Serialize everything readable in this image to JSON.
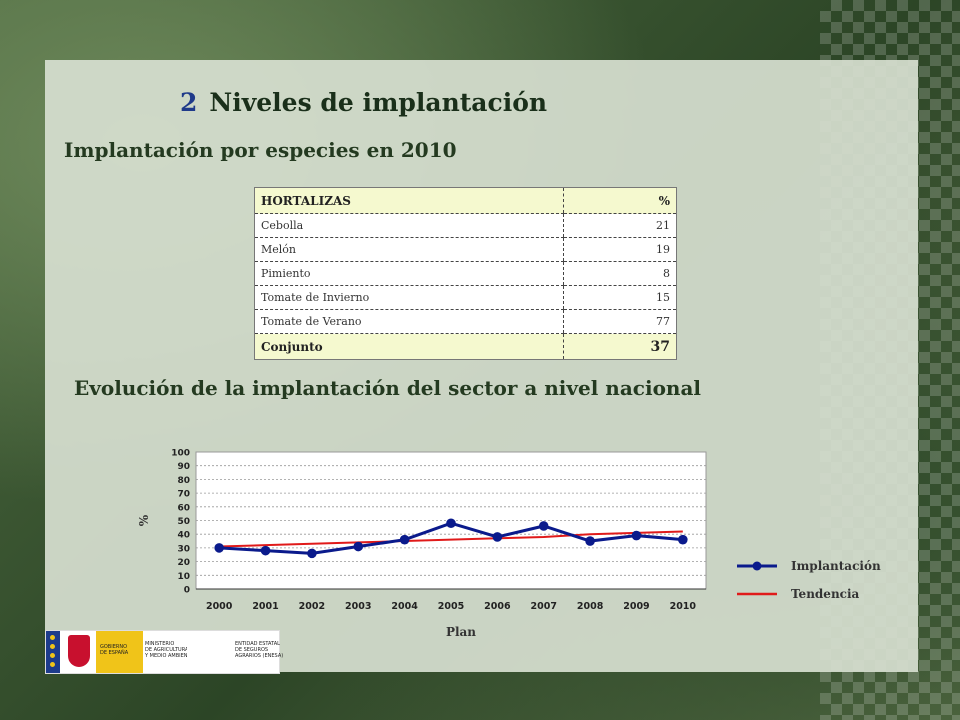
{
  "heading": {
    "number": "2",
    "title": "Niveles de implantación"
  },
  "subtitle": "Implantación por especies en 2010",
  "table": {
    "header": [
      "HORTALIZAS",
      "%"
    ],
    "rows": [
      {
        "label": "Cebolla",
        "value": "21"
      },
      {
        "label": "Melón",
        "value": "19"
      },
      {
        "label": "Pimiento",
        "value": "8"
      },
      {
        "label": "Tomate de Invierno",
        "value": "15"
      },
      {
        "label": "Tomate de Verano",
        "value": "77"
      }
    ],
    "total": {
      "label": "Conjunto",
      "value": "37"
    }
  },
  "chart_title": "Evolución de la implantación del sector a nivel nacional",
  "chart_data": {
    "type": "line",
    "x": [
      "2000",
      "2001",
      "2002",
      "2003",
      "2004",
      "2005",
      "2006",
      "2007",
      "2008",
      "2009",
      "2010"
    ],
    "series": [
      {
        "name": "Implantación",
        "values": [
          30,
          28,
          26,
          31,
          36,
          48,
          38,
          46,
          35,
          39,
          36
        ],
        "color": "#0a1a8c",
        "marker": "circle"
      },
      {
        "name": "Tendencia",
        "values": [
          31,
          32,
          33,
          34,
          35,
          36,
          37,
          38,
          40,
          41,
          42
        ],
        "color": "#e01a1a",
        "marker": "none"
      }
    ],
    "xlabel": "Plan",
    "ylabel": "%",
    "ylim": [
      0,
      100
    ],
    "yticks": [
      0,
      10,
      20,
      30,
      40,
      50,
      60,
      70,
      80,
      90,
      100
    ],
    "grid": true,
    "legend_position": "right"
  },
  "logo": {
    "line1": "GOBIERNO\nDE ESPAÑA",
    "line2": "MINISTERIO\nDE AGRICULTURA, ALIMENTACIÓN\nY MEDIO AMBIENTE",
    "line3": "ENTIDAD ESTATAL\nDE SEGUROS\nAGRARIOS (ENESA)"
  }
}
